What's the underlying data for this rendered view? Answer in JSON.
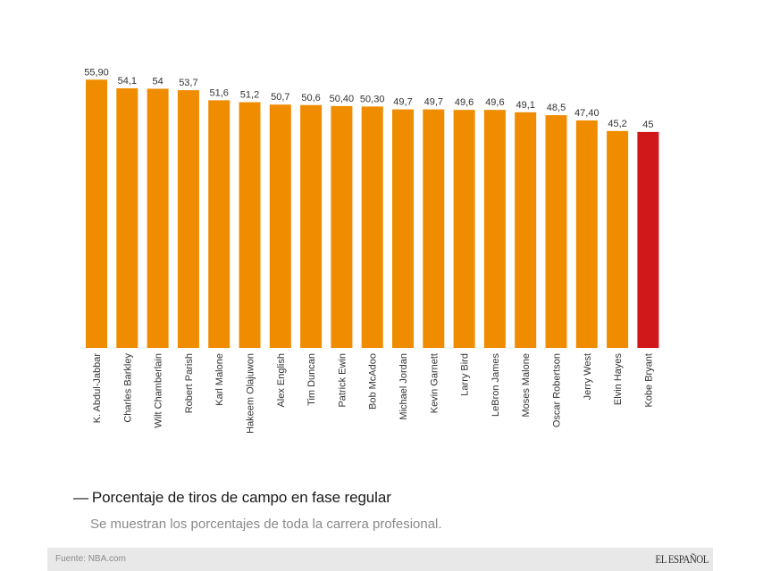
{
  "chart_data": {
    "type": "bar",
    "title": "Porcentaje de tiros de campo en fase regular",
    "subtitle": "Se muestran los porcentajes de toda la carrera profesional.",
    "xlabel": "",
    "ylabel": "",
    "ylim": [
      0,
      56
    ],
    "grid": false,
    "legend": "none",
    "categories": [
      "K. Abdul-Jabbar",
      "Charles Barkley",
      "Wilt Chamberlain",
      "Robert Parish",
      "Karl Malone",
      "Hakeem Olajuwon",
      "Alex English",
      "Tim Duncan",
      "Patrick Ewin",
      "Bob McAdoo",
      "Michael Jordan",
      "Kevin Garnett",
      "Larry Bird",
      "LeBron James",
      "Moses Malone",
      "Oscar Robertson",
      "Jerry West",
      "Elvin Hayes",
      "Kobe Bryant"
    ],
    "values": [
      55.9,
      54.1,
      54,
      53.7,
      51.6,
      51.2,
      50.7,
      50.6,
      50.4,
      50.3,
      49.7,
      49.7,
      49.6,
      49.6,
      49.1,
      48.5,
      47.4,
      45.2,
      45
    ],
    "value_labels": [
      "55,90",
      "54,1",
      "54",
      "53,7",
      "51,6",
      "51,2",
      "50,7",
      "50,6",
      "50,40",
      "50,30",
      "49,7",
      "49,7",
      "49,6",
      "49,6",
      "49,1",
      "48,5",
      "47,40",
      "45,2",
      "45"
    ],
    "highlight": [
      "Kobe Bryant"
    ],
    "colors": {
      "default": "#f08c00",
      "highlight": "#d0171a"
    }
  },
  "header": {
    "title_dash": "—",
    "title": "Porcentaje de tiros de campo en fase regular",
    "subtitle": "Se muestran los porcentajes de toda la carrera profesional."
  },
  "footer": {
    "source": "Fuente: NBA.com",
    "brand": "EL ESPAÑOL"
  }
}
